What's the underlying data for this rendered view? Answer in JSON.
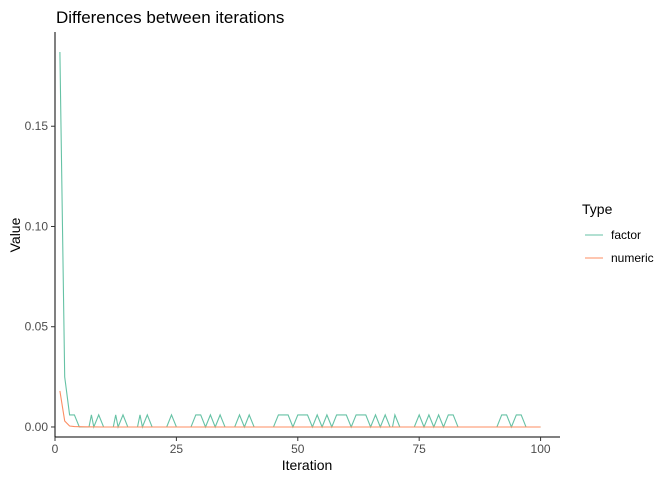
{
  "chart_data": {
    "type": "line",
    "title": "Differences between iterations",
    "xlabel": "Iteration",
    "ylabel": "Value",
    "xlim": [
      0,
      104
    ],
    "ylim": [
      -0.005,
      0.197
    ],
    "xticks": [
      0,
      25,
      50,
      75,
      100
    ],
    "yticks": [
      0.0,
      0.05,
      0.1,
      0.15
    ],
    "ytick_labels": [
      "0.00",
      "0.05",
      "0.10",
      "0.15"
    ],
    "grid": false,
    "legend": {
      "title": "Type",
      "position": "right",
      "entries": [
        "factor",
        "numeric"
      ]
    },
    "series": [
      {
        "name": "factor",
        "color": "#66c2a5",
        "points": [
          [
            1,
            0.187
          ],
          [
            2,
            0.025
          ],
          [
            3,
            0.006
          ],
          [
            4,
            0.006
          ],
          [
            5,
            0.0
          ],
          [
            7,
            0.0
          ],
          [
            7.5,
            0.006
          ],
          [
            8,
            0.0
          ],
          [
            9,
            0.006
          ],
          [
            10,
            0.0
          ],
          [
            12,
            0.0
          ],
          [
            12.5,
            0.006
          ],
          [
            13,
            0.0
          ],
          [
            14,
            0.006
          ],
          [
            15,
            0.0
          ],
          [
            17,
            0.0
          ],
          [
            17.5,
            0.006
          ],
          [
            18,
            0.0
          ],
          [
            19,
            0.006
          ],
          [
            20,
            0.0
          ],
          [
            23,
            0.0
          ],
          [
            24,
            0.006
          ],
          [
            25,
            0.0
          ],
          [
            28,
            0.0
          ],
          [
            29,
            0.006
          ],
          [
            30,
            0.006
          ],
          [
            31,
            0.0
          ],
          [
            32,
            0.006
          ],
          [
            33,
            0.0
          ],
          [
            34,
            0.006
          ],
          [
            35,
            0.0
          ],
          [
            37,
            0.0
          ],
          [
            38,
            0.006
          ],
          [
            39,
            0.0
          ],
          [
            40,
            0.006
          ],
          [
            41,
            0.0
          ],
          [
            45,
            0.0
          ],
          [
            46,
            0.006
          ],
          [
            48,
            0.006
          ],
          [
            49,
            0.0
          ],
          [
            50,
            0.006
          ],
          [
            52,
            0.006
          ],
          [
            53,
            0.0
          ],
          [
            54,
            0.006
          ],
          [
            55,
            0.0
          ],
          [
            56,
            0.006
          ],
          [
            57,
            0.0
          ],
          [
            58,
            0.006
          ],
          [
            60,
            0.006
          ],
          [
            61,
            0.0
          ],
          [
            62,
            0.006
          ],
          [
            64,
            0.006
          ],
          [
            65,
            0.0
          ],
          [
            66,
            0.006
          ],
          [
            67,
            0.0
          ],
          [
            68,
            0.006
          ],
          [
            69,
            0.0
          ],
          [
            69.5,
            0.0
          ],
          [
            70,
            0.006
          ],
          [
            71,
            0.0
          ],
          [
            74,
            0.0
          ],
          [
            75,
            0.006
          ],
          [
            76,
            0.0
          ],
          [
            77,
            0.006
          ],
          [
            78,
            0.0
          ],
          [
            79,
            0.006
          ],
          [
            80,
            0.0
          ],
          [
            81,
            0.006
          ],
          [
            82,
            0.006
          ],
          [
            83,
            0.0
          ],
          [
            91,
            0.0
          ],
          [
            92,
            0.006
          ],
          [
            93,
            0.006
          ],
          [
            94,
            0.0
          ],
          [
            95,
            0.006
          ],
          [
            96,
            0.006
          ],
          [
            97,
            0.0
          ],
          [
            100,
            0.0
          ]
        ]
      },
      {
        "name": "numeric",
        "color": "#fc8d62",
        "points": [
          [
            1,
            0.018
          ],
          [
            2,
            0.003
          ],
          [
            3,
            0.0005
          ],
          [
            4,
            0.0002
          ],
          [
            6,
            0.0001
          ],
          [
            10,
            0.0
          ],
          [
            100,
            0.0
          ]
        ]
      }
    ]
  }
}
